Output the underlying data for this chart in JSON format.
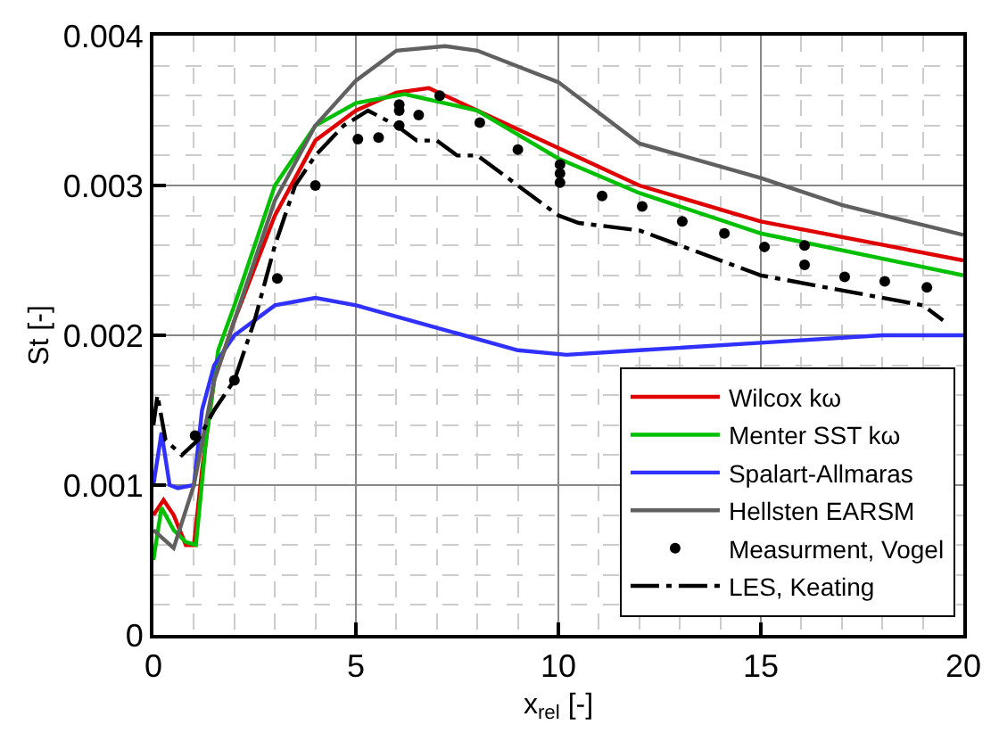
{
  "chart_data": {
    "type": "line",
    "xlabel": "x$_{rel}$ [-]",
    "ylabel": "St [-]",
    "xlim": [
      0,
      20
    ],
    "xticks": [
      0,
      5,
      10,
      15,
      20
    ],
    "ylim": [
      0,
      0.004
    ],
    "yticks": [
      0,
      0.001,
      0.002,
      0.003,
      0.004
    ],
    "grid": true,
    "legend": "bottom right",
    "marker": "none",
    "series": [
      {
        "name": "Wilcox kω",
        "color": "#e00000",
        "x": [
          0,
          0.25,
          0.5,
          0.8,
          1.0,
          1.2,
          1.5,
          2,
          3,
          4,
          5,
          6,
          6.8,
          8,
          10,
          12,
          15,
          20
        ],
        "values": [
          0.0008,
          0.0009,
          0.0008,
          0.0006,
          0.0006,
          0.0011,
          0.0017,
          0.0021,
          0.0028,
          0.0033,
          0.0035,
          0.00362,
          0.00365,
          0.0035,
          0.00325,
          0.003,
          0.00276,
          0.0025
        ]
      },
      {
        "name": "Menter SST kω",
        "color": "#00c000",
        "x": [
          0,
          0.2,
          0.5,
          0.8,
          1.05,
          1.3,
          1.6,
          2,
          3,
          4,
          5,
          6.2,
          8,
          10,
          12,
          15,
          20
        ],
        "values": [
          0.0005,
          0.00085,
          0.0007,
          0.00062,
          0.0006,
          0.0013,
          0.0019,
          0.0022,
          0.003,
          0.0034,
          0.00355,
          0.00361,
          0.0035,
          0.00318,
          0.00295,
          0.00268,
          0.0024
        ]
      },
      {
        "name": "Spalart-Allmaras",
        "color": "#3030ff",
        "x": [
          0,
          0.2,
          0.4,
          0.6,
          1.0,
          1.2,
          1.5,
          2,
          3,
          4,
          5,
          7,
          9,
          10.2,
          12,
          15,
          18,
          20
        ],
        "values": [
          0.001,
          0.00135,
          0.001,
          0.00098,
          0.001,
          0.0015,
          0.0018,
          0.002,
          0.0022,
          0.00225,
          0.0022,
          0.00205,
          0.0019,
          0.00187,
          0.0019,
          0.00195,
          0.002,
          0.002
        ]
      },
      {
        "name": "Hellsten EARSM",
        "color": "#606060",
        "x": [
          0,
          0.5,
          1,
          1.5,
          2,
          3,
          4,
          5,
          6,
          7.2,
          8,
          10,
          12,
          15,
          17,
          20
        ],
        "values": [
          0.0007,
          0.00058,
          0.001,
          0.0017,
          0.0021,
          0.0029,
          0.0034,
          0.0037,
          0.0039,
          0.00393,
          0.0039,
          0.00369,
          0.00328,
          0.00305,
          0.00287,
          0.00267
        ]
      },
      {
        "name": "Measurment, Vogel",
        "type": "scatter",
        "marker": "circle",
        "color": "#000000",
        "x": [
          1.03,
          2.0,
          3.06,
          4.0,
          5.05,
          5.56,
          6.07,
          6.07,
          6.07,
          6.55,
          7.07,
          8.06,
          9.0,
          10.04,
          10.04,
          10.04,
          11.08,
          12.07,
          13.06,
          14.1,
          15.09,
          16.08,
          16.08,
          17.07,
          18.06,
          19.1
        ],
        "values": [
          0.00133,
          0.0017,
          0.00238,
          0.003,
          0.00331,
          0.00332,
          0.00354,
          0.0035,
          0.0034,
          0.00347,
          0.0036,
          0.00342,
          0.00324,
          0.00314,
          0.00308,
          0.00302,
          0.00293,
          0.00286,
          0.00276,
          0.00268,
          0.00259,
          0.0026,
          0.00247,
          0.00239,
          0.00236,
          0.00232
        ]
      },
      {
        "name": "LES, Keating",
        "color": "#000000",
        "line_style": "dashed",
        "x": [
          0,
          0.1,
          0.3,
          0.7,
          1.1,
          1.5,
          2,
          2.5,
          3,
          3.5,
          4,
          4.7,
          5.3,
          6,
          6.5,
          7,
          7.5,
          8,
          9,
          10,
          10.5,
          12,
          13,
          14,
          15,
          17,
          19,
          19.5
        ],
        "values": [
          0.0014,
          0.0016,
          0.0013,
          0.0012,
          0.0013,
          0.0015,
          0.0017,
          0.0021,
          0.0026,
          0.003,
          0.0032,
          0.0034,
          0.0035,
          0.0034,
          0.0033,
          0.0033,
          0.0032,
          0.0032,
          0.003,
          0.0028,
          0.00275,
          0.0027,
          0.0026,
          0.0025,
          0.0024,
          0.0023,
          0.0022,
          0.0021
        ]
      }
    ]
  }
}
